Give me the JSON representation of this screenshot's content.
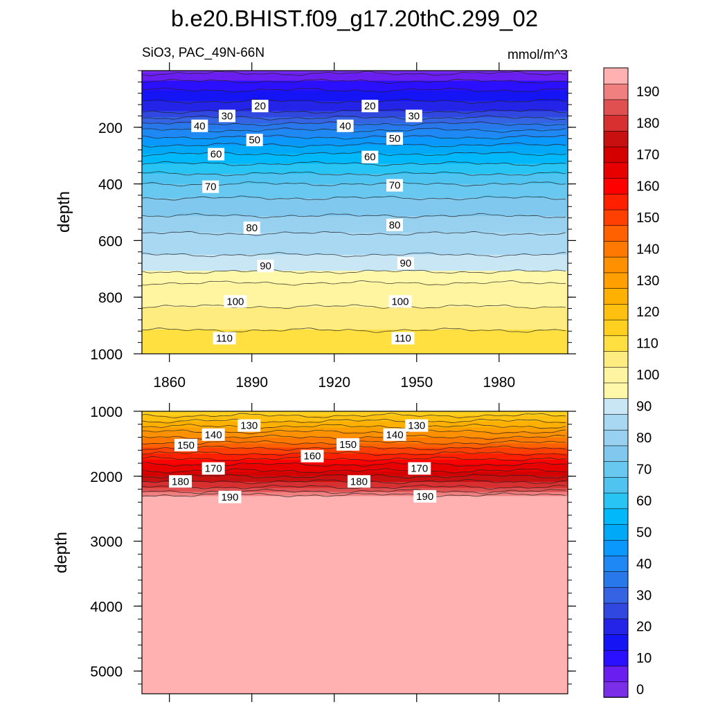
{
  "page": {
    "title": "b.e20.BHIST.f09_g17.20thC.299_02",
    "variable_label": "SiO3, PAC_49N-66N",
    "units": "mmol/m^3"
  },
  "colorbar": {
    "levels": [
      0,
      5,
      10,
      15,
      20,
      25,
      30,
      35,
      40,
      45,
      50,
      55,
      60,
      65,
      70,
      75,
      80,
      85,
      90,
      95,
      100,
      105,
      110,
      115,
      120,
      125,
      130,
      135,
      140,
      145,
      150,
      155,
      160,
      165,
      170,
      175,
      180,
      185,
      190,
      195
    ],
    "tick_labels": [
      "0",
      "10",
      "20",
      "30",
      "40",
      "50",
      "60",
      "70",
      "80",
      "90",
      "100",
      "110",
      "120",
      "130",
      "140",
      "150",
      "160",
      "170",
      "180",
      "190"
    ],
    "colors": [
      "#7a2ee8",
      "#6a1ef0",
      "#2a10ff",
      "#1414f5",
      "#2424e8",
      "#3048e0",
      "#3464e4",
      "#2878ec",
      "#1e88f4",
      "#0a98fc",
      "#00a8f8",
      "#00b8fa",
      "#28c4f4",
      "#50c4f0",
      "#68c8f0",
      "#80c8ee",
      "#98d0f0",
      "#a8d8f2",
      "#c8e6f4",
      "#fff8a8",
      "#fff4a0",
      "#ffec80",
      "#ffe040",
      "#ffd020",
      "#ffc010",
      "#ffb000",
      "#ffa000",
      "#ff9000",
      "#ff7800",
      "#ff6000",
      "#ff4000",
      "#ff2000",
      "#ff0000",
      "#e80000",
      "#d40000",
      "#c81010",
      "#d83030",
      "#e05050",
      "#f08080",
      "#ffb0b0"
    ]
  },
  "chart_data": [
    {
      "type": "heatmap",
      "panel": "upper",
      "title": "SiO3, PAC_49N-66N",
      "ylabel": "depth",
      "xlabel": "",
      "xlim": [
        1850,
        2005
      ],
      "ylim": [
        1000,
        0
      ],
      "x_ticks": [
        1860,
        1890,
        1920,
        1950,
        1980
      ],
      "x_tick_labels": [
        "1860",
        "1890",
        "1920",
        "1950",
        "1980"
      ],
      "y_ticks": [
        200,
        400,
        600,
        800,
        1000
      ],
      "y_tick_labels": [
        "200",
        "400",
        "600",
        "800",
        "1000"
      ],
      "profile": {
        "depth": [
          5,
          25,
          50,
          75,
          100,
          125,
          150,
          175,
          200,
          250,
          300,
          350,
          400,
          450,
          500,
          550,
          600,
          650,
          700,
          720,
          750,
          800,
          850,
          900,
          950,
          1000
        ],
        "value": [
          4,
          8,
          12,
          16,
          19,
          22,
          26,
          32,
          38,
          48,
          56,
          63,
          70,
          75,
          79,
          83,
          87,
          90,
          93,
          97,
          100,
          103,
          106,
          109,
          112,
          114
        ]
      },
      "contour_labels": [
        {
          "text": "20",
          "year": 1893,
          "depth": 125
        },
        {
          "text": "20",
          "year": 1933,
          "depth": 125
        },
        {
          "text": "30",
          "year": 1881,
          "depth": 160
        },
        {
          "text": "30",
          "year": 1949,
          "depth": 160
        },
        {
          "text": "40",
          "year": 1871,
          "depth": 195
        },
        {
          "text": "40",
          "year": 1924,
          "depth": 195
        },
        {
          "text": "50",
          "year": 1891,
          "depth": 245
        },
        {
          "text": "50",
          "year": 1942,
          "depth": 240
        },
        {
          "text": "60",
          "year": 1877,
          "depth": 295
        },
        {
          "text": "60",
          "year": 1933,
          "depth": 305
        },
        {
          "text": "70",
          "year": 1875,
          "depth": 410
        },
        {
          "text": "70",
          "year": 1942,
          "depth": 405
        },
        {
          "text": "80",
          "year": 1890,
          "depth": 555
        },
        {
          "text": "80",
          "year": 1942,
          "depth": 545
        },
        {
          "text": "90",
          "year": 1895,
          "depth": 690
        },
        {
          "text": "90",
          "year": 1946,
          "depth": 680
        },
        {
          "text": "100",
          "year": 1884,
          "depth": 815
        },
        {
          "text": "100",
          "year": 1944,
          "depth": 815
        },
        {
          "text": "110",
          "year": 1880,
          "depth": 945
        },
        {
          "text": "110",
          "year": 1945,
          "depth": 945
        }
      ]
    },
    {
      "type": "heatmap",
      "panel": "lower",
      "ylabel": "depth",
      "xlabel": "",
      "xlim": [
        1850,
        2005
      ],
      "ylim": [
        5350,
        1000
      ],
      "x_ticks": [
        1860,
        1890,
        1920,
        1950,
        1980
      ],
      "y_ticks": [
        1000,
        2000,
        3000,
        4000,
        5000
      ],
      "y_tick_labels": [
        "1000",
        "2000",
        "3000",
        "4000",
        "5000"
      ],
      "profile": {
        "depth": [
          1000,
          1100,
          1200,
          1300,
          1400,
          1500,
          1600,
          1700,
          1800,
          1900,
          2000,
          2100,
          2200,
          2300,
          5350
        ],
        "value": [
          116,
          122,
          128,
          134,
          140,
          146,
          152,
          158,
          164,
          169,
          175,
          181,
          187,
          196,
          196
        ]
      },
      "contour_labels": [
        {
          "text": "130",
          "year": 1889,
          "depth": 1220
        },
        {
          "text": "130",
          "year": 1950,
          "depth": 1220
        },
        {
          "text": "140",
          "year": 1876,
          "depth": 1360
        },
        {
          "text": "140",
          "year": 1942,
          "depth": 1360
        },
        {
          "text": "150",
          "year": 1866,
          "depth": 1520
        },
        {
          "text": "150",
          "year": 1925,
          "depth": 1510
        },
        {
          "text": "160",
          "year": 1912,
          "depth": 1690
        },
        {
          "text": "170",
          "year": 1876,
          "depth": 1880
        },
        {
          "text": "170",
          "year": 1951,
          "depth": 1880
        },
        {
          "text": "180",
          "year": 1864,
          "depth": 2080
        },
        {
          "text": "180",
          "year": 1929,
          "depth": 2080
        },
        {
          "text": "190",
          "year": 1882,
          "depth": 2320
        },
        {
          "text": "190",
          "year": 1953,
          "depth": 2310
        }
      ]
    }
  ]
}
